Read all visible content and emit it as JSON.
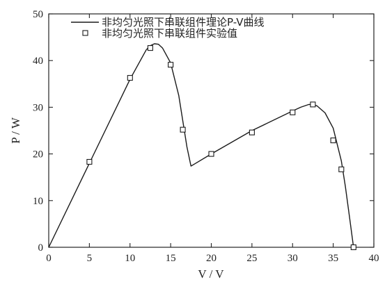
{
  "chart_data": {
    "type": "line",
    "xlabel": "V / V",
    "ylabel": "P / W",
    "xlim": [
      0,
      40
    ],
    "ylim": [
      0,
      50
    ],
    "x_ticks": [
      0,
      5,
      10,
      15,
      20,
      25,
      30,
      35,
      40
    ],
    "y_ticks": [
      0,
      10,
      20,
      30,
      40,
      50
    ],
    "grid": false,
    "legend_position": "top",
    "series": [
      {
        "name": "非均匀光照下串联组件理论P-V曲线",
        "style": "line",
        "color": "#1a1a1a",
        "x": [
          0,
          5,
          10,
          12,
          12.5,
          13,
          13.5,
          14,
          15,
          16,
          17,
          17.5,
          18,
          20,
          25,
          30,
          31,
          32,
          32.5,
          33,
          34,
          35,
          36,
          36.5,
          37,
          37.5
        ],
        "y": [
          0,
          18,
          36,
          42.3,
          43.2,
          43.6,
          43.5,
          42.7,
          39.5,
          32.5,
          21.5,
          17.4,
          17.9,
          20,
          25,
          29.2,
          30,
          30.6,
          30.6,
          30.3,
          28.8,
          25.5,
          18.5,
          13,
          6.5,
          0
        ]
      },
      {
        "name": "非均匀光照下串联组件实验值",
        "style": "markers",
        "marker": "open-square",
        "color": "#1a1a1a",
        "x": [
          5,
          10,
          12.5,
          15,
          16.5,
          20,
          25,
          30,
          32.5,
          35,
          36,
          37.5
        ],
        "y": [
          18.3,
          36.3,
          42.7,
          39.1,
          25.2,
          20,
          24.6,
          28.9,
          30.6,
          22.9,
          16.7,
          0
        ]
      }
    ]
  }
}
